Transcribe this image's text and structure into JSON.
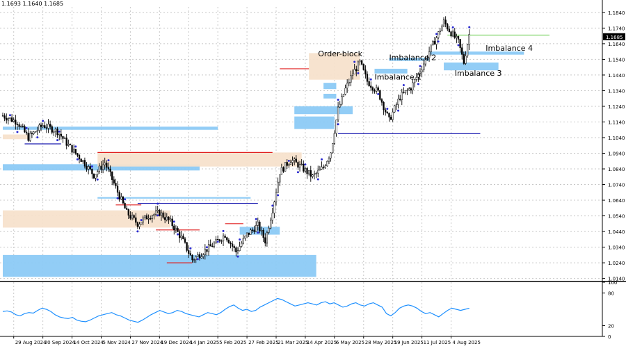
{
  "header": {
    "ohlc_text": "1.1693 1.1640 1.1685"
  },
  "colors": {
    "background": "#ffffff",
    "grid": "#c8c8c8",
    "candle": "#000000",
    "imbalance_zone": "#8ccaf5",
    "orderblock_zone": "#f7e2cc",
    "marker": "#2a2ad0",
    "level_line": "#1b1bb0",
    "red_level": "#e02020",
    "green_level": "#7fd36a",
    "price_tag_bg": "#000000",
    "price_tag_text": "#ffffff",
    "rsi_line": "#1e90ff"
  },
  "chart_data": [
    {
      "type": "candlestick",
      "instrument_note": "",
      "price_axis": {
        "ylim": [
          1.0125,
          1.1875
        ],
        "ticks": [
          "1.1840",
          "1.1740",
          "1.1640",
          "1.1540",
          "1.1440",
          "1.1340",
          "1.1240",
          "1.1140",
          "1.1040",
          "1.0940",
          "1.0840",
          "1.0740",
          "1.0640",
          "1.0540",
          "1.0440",
          "1.0340",
          "1.0240",
          "1.0140"
        ],
        "current_price_tag": "1.1685"
      },
      "time_axis": {
        "labels": [
          "29 Aug 2024",
          "20 Sep 2024",
          "14 Oct 2024",
          "5 Nov 2024",
          "27 Nov 2024",
          "19 Dec 2024",
          "14 Jan 2025",
          "5 Feb 2025",
          "27 Feb 2025",
          "21 Mar 2025",
          "14 Apr 2025",
          "6 May 2025",
          "28 May 2025",
          "19 Jun 2025",
          "11 Jul 2025",
          "4 Aug 2025"
        ],
        "bars_between_labels": 16,
        "total_bars": 256
      },
      "close_path_keypoints": [
        [
          0,
          1.118
        ],
        [
          8,
          1.114
        ],
        [
          14,
          1.104
        ],
        [
          22,
          1.112
        ],
        [
          30,
          1.108
        ],
        [
          36,
          1.099
        ],
        [
          44,
          1.089
        ],
        [
          50,
          1.08
        ],
        [
          56,
          1.088
        ],
        [
          62,
          1.072
        ],
        [
          68,
          1.056
        ],
        [
          74,
          1.049
        ],
        [
          80,
          1.054
        ],
        [
          86,
          1.056
        ],
        [
          92,
          1.05
        ],
        [
          98,
          1.04
        ],
        [
          104,
          1.026
        ],
        [
          110,
          1.031
        ],
        [
          116,
          1.036
        ],
        [
          122,
          1.042
        ],
        [
          128,
          1.031
        ],
        [
          134,
          1.042
        ],
        [
          140,
          1.048
        ],
        [
          144,
          1.038
        ],
        [
          148,
          1.058
        ],
        [
          152,
          1.082
        ],
        [
          158,
          1.09
        ],
        [
          164,
          1.085
        ],
        [
          170,
          1.079
        ],
        [
          176,
          1.085
        ],
        [
          180,
          1.095
        ],
        [
          184,
          1.122
        ],
        [
          188,
          1.135
        ],
        [
          192,
          1.145
        ],
        [
          196,
          1.152
        ],
        [
          200,
          1.14
        ],
        [
          206,
          1.133
        ],
        [
          212,
          1.115
        ],
        [
          218,
          1.13
        ],
        [
          224,
          1.136
        ],
        [
          230,
          1.149
        ],
        [
          234,
          1.159
        ],
        [
          238,
          1.168
        ],
        [
          242,
          1.178
        ],
        [
          246,
          1.171
        ],
        [
          250,
          1.165
        ],
        [
          253,
          1.152
        ],
        [
          256,
          1.17
        ]
      ],
      "zones": [
        {
          "kind": "imbalance",
          "top": 1.111,
          "bottom": 1.109,
          "start_bar": 0,
          "end_bar": 118
        },
        {
          "kind": "imbalance",
          "top": 1.087,
          "bottom": 1.083,
          "start_bar": 0,
          "end_bar": 108
        },
        {
          "kind": "imbalance",
          "top": 1.029,
          "bottom": 1.015,
          "start_bar": 0,
          "end_bar": 172
        },
        {
          "kind": "imbalance",
          "top": 1.124,
          "bottom": 1.119,
          "start_bar": 160,
          "end_bar": 192
        },
        {
          "kind": "imbalance",
          "top": 1.1175,
          "bottom": 1.1095,
          "start_bar": 160,
          "end_bar": 182
        },
        {
          "kind": "imbalance",
          "top": 1.132,
          "bottom": 1.129,
          "start_bar": 176,
          "end_bar": 183
        },
        {
          "kind": "imbalance",
          "top": 1.139,
          "bottom": 1.135,
          "start_bar": 176,
          "end_bar": 183
        },
        {
          "kind": "imbalance",
          "top": 1.148,
          "bottom": 1.145,
          "start_bar": 204,
          "end_bar": 222
        },
        {
          "kind": "imbalance",
          "top": 1.155,
          "bottom": 1.153,
          "start_bar": 212,
          "end_bar": 234
        },
        {
          "kind": "imbalance",
          "top": 1.159,
          "bottom": 1.157,
          "start_bar": 234,
          "end_bar": 286
        },
        {
          "kind": "imbalance",
          "top": 1.152,
          "bottom": 1.147,
          "start_bar": 242,
          "end_bar": 272
        },
        {
          "kind": "imbalance",
          "top": 1.047,
          "bottom": 1.042,
          "start_bar": 130,
          "end_bar": 152
        },
        {
          "kind": "imbalance",
          "top": 1.066,
          "bottom": 1.065,
          "start_bar": 52,
          "end_bar": 136
        },
        {
          "kind": "orderblock",
          "top": 1.158,
          "bottom": 1.141,
          "start_bar": 168,
          "end_bar": 196
        },
        {
          "kind": "orderblock",
          "top": 1.0945,
          "bottom": 1.0855,
          "start_bar": 52,
          "end_bar": 164
        },
        {
          "kind": "orderblock",
          "top": 1.0575,
          "bottom": 1.0465,
          "start_bar": 0,
          "end_bar": 92
        },
        {
          "kind": "orderblock",
          "top": 1.106,
          "bottom": 1.103,
          "start_bar": 0,
          "end_bar": 14
        }
      ],
      "levels": [
        {
          "color_key": "level_line",
          "price": 1.1065,
          "start_bar": 184,
          "end_bar": 262
        },
        {
          "color_key": "level_line",
          "price": 1.062,
          "start_bar": 74,
          "end_bar": 140
        },
        {
          "color_key": "level_line",
          "price": 1.1,
          "start_bar": 12,
          "end_bar": 32
        },
        {
          "color_key": "red_level",
          "price": 1.148,
          "start_bar": 152,
          "end_bar": 168
        },
        {
          "color_key": "red_level",
          "price": 1.0945,
          "start_bar": 52,
          "end_bar": 148
        },
        {
          "color_key": "red_level",
          "price": 1.061,
          "start_bar": 62,
          "end_bar": 76
        },
        {
          "color_key": "red_level",
          "price": 1.049,
          "start_bar": 122,
          "end_bar": 132
        },
        {
          "color_key": "red_level",
          "price": 1.045,
          "start_bar": 84,
          "end_bar": 108
        },
        {
          "color_key": "red_level",
          "price": 1.024,
          "start_bar": 90,
          "end_bar": 104
        },
        {
          "color_key": "green_level",
          "price": 1.1695,
          "start_bar": 244,
          "end_bar": 300
        }
      ],
      "annotations": [
        {
          "text": "Order-block",
          "bar": 173,
          "price": 1.156
        },
        {
          "text": "Imbalance 2",
          "bar": 212,
          "price": 1.1535
        },
        {
          "text": "Imbalance 1",
          "bar": 204,
          "price": 1.141
        },
        {
          "text": "Imbalance 4",
          "bar": 265,
          "price": 1.1595
        },
        {
          "text": "Imbalance 3",
          "bar": 248,
          "price": 1.1435
        }
      ]
    },
    {
      "type": "line",
      "indicator": "oscillator",
      "ylim": [
        0,
        100
      ],
      "ticks": [
        "100",
        "80",
        "20",
        "0"
      ],
      "values": [
        46,
        47,
        45,
        40,
        38,
        42,
        44,
        43,
        48,
        52,
        50,
        46,
        40,
        36,
        34,
        33,
        35,
        30,
        28,
        27,
        30,
        34,
        38,
        40,
        42,
        44,
        40,
        38,
        34,
        30,
        28,
        26,
        30,
        35,
        40,
        44,
        48,
        45,
        42,
        44,
        48,
        46,
        42,
        40,
        38,
        36,
        40,
        44,
        42,
        40,
        44,
        50,
        55,
        58,
        52,
        48,
        50,
        46,
        48,
        54,
        58,
        62,
        66,
        70,
        68,
        64,
        60,
        56,
        58,
        60,
        62,
        60,
        58,
        62,
        64,
        60,
        62,
        58,
        54,
        56,
        60,
        62,
        58,
        56,
        60,
        62,
        58,
        54,
        42,
        38,
        44,
        52,
        56,
        58,
        56,
        52,
        46,
        42,
        44,
        40,
        36,
        42,
        48,
        52,
        50,
        48,
        50,
        52
      ]
    }
  ]
}
